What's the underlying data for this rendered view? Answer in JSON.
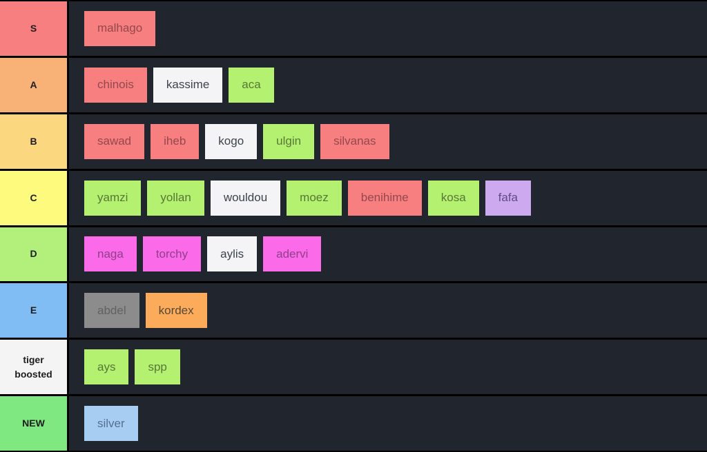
{
  "layout_colors": {
    "row_background": "#21252d",
    "separator": "#000000",
    "label_text": "#1d1d1d"
  },
  "tile_styles": {
    "salmon": {
      "bg": "#f87f7f",
      "fg": "#93484f"
    },
    "white": {
      "bg": "#f4f4f6",
      "fg": "#3d434b"
    },
    "green": {
      "bg": "#b5f170",
      "fg": "#567737"
    },
    "purple": {
      "bg": "#cda9f0",
      "fg": "#624a80"
    },
    "pink": {
      "bg": "#fa6ae9",
      "fg": "#8f4088"
    },
    "gray": {
      "bg": "#8c8c8c",
      "fg": "#616161"
    },
    "orange": {
      "bg": "#fbab59",
      "fg": "#55483a"
    },
    "blue": {
      "bg": "#a8cdf3",
      "fg": "#53718f"
    }
  },
  "rows": [
    {
      "tier": "S",
      "label_color": "#f87f7f",
      "items": [
        {
          "label": "malhago",
          "style": "salmon"
        }
      ]
    },
    {
      "tier": "A",
      "label_color": "#f8b177",
      "items": [
        {
          "label": "chinois",
          "style": "salmon"
        },
        {
          "label": "kassime",
          "style": "white"
        },
        {
          "label": "aca",
          "style": "green"
        }
      ]
    },
    {
      "tier": "B",
      "label_color": "#fbd880",
      "items": [
        {
          "label": "sawad",
          "style": "salmon"
        },
        {
          "label": "iheb",
          "style": "salmon"
        },
        {
          "label": "kogo",
          "style": "white"
        },
        {
          "label": "ulgin",
          "style": "green"
        },
        {
          "label": "silvanas",
          "style": "salmon"
        }
      ]
    },
    {
      "tier": "C",
      "label_color": "#fdfa7e",
      "items": [
        {
          "label": "yamzi",
          "style": "green"
        },
        {
          "label": "yollan",
          "style": "green"
        },
        {
          "label": "wouldou",
          "style": "white"
        },
        {
          "label": "moez",
          "style": "green"
        },
        {
          "label": "benihime",
          "style": "salmon"
        },
        {
          "label": "kosa",
          "style": "green"
        },
        {
          "label": "fafa",
          "style": "purple"
        }
      ]
    },
    {
      "tier": "D",
      "label_color": "#b2f07b",
      "items": [
        {
          "label": "naga",
          "style": "pink"
        },
        {
          "label": "torchy",
          "style": "pink"
        },
        {
          "label": "aylis",
          "style": "white"
        },
        {
          "label": "adervi",
          "style": "pink"
        }
      ]
    },
    {
      "tier": "E",
      "label_color": "#80bdf4",
      "items": [
        {
          "label": "abdel",
          "style": "gray"
        },
        {
          "label": "kordex",
          "style": "orange"
        }
      ]
    },
    {
      "tier": "tiger boosted",
      "label_color": "#f4f4f4",
      "items": [
        {
          "label": "ays",
          "style": "green"
        },
        {
          "label": "spp",
          "style": "green"
        }
      ]
    },
    {
      "tier": "NEW",
      "label_color": "#7fe881",
      "items": [
        {
          "label": "silver",
          "style": "blue"
        }
      ]
    }
  ]
}
